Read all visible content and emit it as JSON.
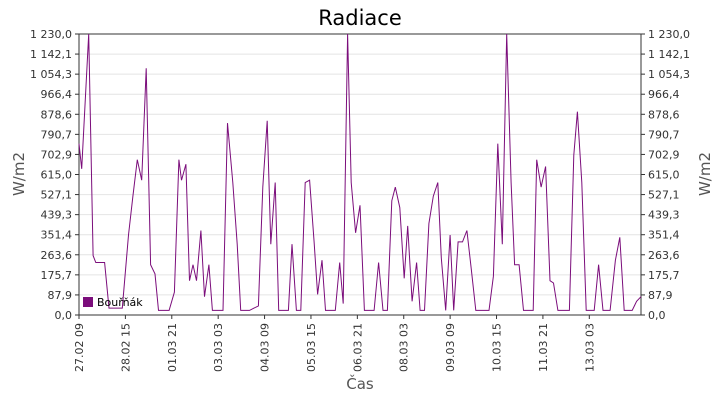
{
  "chart_data": {
    "type": "line",
    "title": "Radiace",
    "xlabel": "Čas",
    "ylabel_left": "W/m2",
    "ylabel_right": "W/m2",
    "ylim": [
      0,
      1230
    ],
    "y_ticks": [
      "0,0",
      "87,9",
      "175,7",
      "263,6",
      "351,4",
      "439,3",
      "527,1",
      "615,0",
      "702,9",
      "790,7",
      "878,6",
      "966,4",
      "1 054,3",
      "1 142,1",
      "1 230,0"
    ],
    "x_ticks": [
      "27.02 09",
      "28.02 15",
      "01.03 21",
      "03.03 03",
      "04.03 09",
      "05.03 15",
      "06.03 21",
      "08.03 03",
      "09.03 09",
      "10.03 15",
      "11.03 21",
      "13.03 03"
    ],
    "grid": true,
    "legend_position": "bottom-left",
    "series": [
      {
        "name": "Bouřňák",
        "color": "#7b0d7b",
        "values": [
          [
            0,
            750
          ],
          [
            0.3,
            640
          ],
          [
            1.1,
            1230
          ],
          [
            1.6,
            260
          ],
          [
            1.9,
            230
          ],
          [
            2.6,
            230
          ],
          [
            2.9,
            230
          ],
          [
            3.4,
            30
          ],
          [
            4.9,
            30
          ],
          [
            5.6,
            350
          ],
          [
            6.1,
            520
          ],
          [
            6.6,
            680
          ],
          [
            7.1,
            590
          ],
          [
            7.6,
            1080
          ],
          [
            8.1,
            220
          ],
          [
            8.6,
            180
          ],
          [
            9.0,
            20
          ],
          [
            10.2,
            20
          ],
          [
            10.8,
            100
          ],
          [
            11.3,
            680
          ],
          [
            11.6,
            590
          ],
          [
            12.1,
            660
          ],
          [
            12.5,
            150
          ],
          [
            12.9,
            220
          ],
          [
            13.3,
            150
          ],
          [
            13.8,
            370
          ],
          [
            14.2,
            80
          ],
          [
            14.7,
            220
          ],
          [
            15.1,
            20
          ],
          [
            16.3,
            20
          ],
          [
            16.8,
            840
          ],
          [
            17.4,
            580
          ],
          [
            17.9,
            310
          ],
          [
            18.3,
            20
          ],
          [
            19.3,
            20
          ],
          [
            20.3,
            40
          ],
          [
            20.8,
            560
          ],
          [
            21.3,
            850
          ],
          [
            21.7,
            310
          ],
          [
            22.2,
            580
          ],
          [
            22.6,
            20
          ],
          [
            23.7,
            20
          ],
          [
            24.1,
            310
          ],
          [
            24.6,
            20
          ],
          [
            25.1,
            20
          ],
          [
            25.6,
            580
          ],
          [
            26.1,
            590
          ],
          [
            26.6,
            320
          ],
          [
            27.0,
            90
          ],
          [
            27.5,
            240
          ],
          [
            27.9,
            20
          ],
          [
            29.0,
            20
          ],
          [
            29.5,
            230
          ],
          [
            29.9,
            50
          ],
          [
            30.4,
            1230
          ],
          [
            30.8,
            580
          ],
          [
            31.3,
            360
          ],
          [
            31.8,
            480
          ],
          [
            32.3,
            20
          ],
          [
            33.4,
            20
          ],
          [
            33.9,
            230
          ],
          [
            34.4,
            20
          ],
          [
            34.9,
            20
          ],
          [
            35.4,
            500
          ],
          [
            35.8,
            560
          ],
          [
            36.3,
            470
          ],
          [
            36.8,
            160
          ],
          [
            37.2,
            390
          ],
          [
            37.7,
            60
          ],
          [
            38.2,
            230
          ],
          [
            38.6,
            20
          ],
          [
            39.1,
            20
          ],
          [
            39.6,
            400
          ],
          [
            40.1,
            520
          ],
          [
            40.6,
            580
          ],
          [
            41.0,
            250
          ],
          [
            41.5,
            20
          ],
          [
            42.0,
            350
          ],
          [
            42.4,
            20
          ],
          [
            42.9,
            320
          ],
          [
            43.4,
            320
          ],
          [
            43.9,
            370
          ],
          [
            44.4,
            200
          ],
          [
            44.9,
            20
          ],
          [
            46.4,
            20
          ],
          [
            46.9,
            170
          ],
          [
            47.4,
            750
          ],
          [
            47.9,
            310
          ],
          [
            48.4,
            1230
          ],
          [
            48.9,
            580
          ],
          [
            49.3,
            220
          ],
          [
            49.8,
            220
          ],
          [
            50.3,
            20
          ],
          [
            51.4,
            20
          ],
          [
            51.8,
            680
          ],
          [
            52.3,
            560
          ],
          [
            52.8,
            650
          ],
          [
            53.3,
            150
          ],
          [
            53.7,
            140
          ],
          [
            54.2,
            20
          ],
          [
            55.5,
            20
          ],
          [
            56.0,
            700
          ],
          [
            56.4,
            890
          ],
          [
            56.9,
            580
          ],
          [
            57.4,
            20
          ],
          [
            58.3,
            20
          ],
          [
            58.8,
            220
          ],
          [
            59.3,
            20
          ],
          [
            60.1,
            20
          ],
          [
            60.7,
            240
          ],
          [
            61.2,
            340
          ],
          [
            61.7,
            20
          ],
          [
            62.6,
            20
          ],
          [
            63.1,
            60
          ],
          [
            63.6,
            80
          ]
        ]
      }
    ]
  }
}
